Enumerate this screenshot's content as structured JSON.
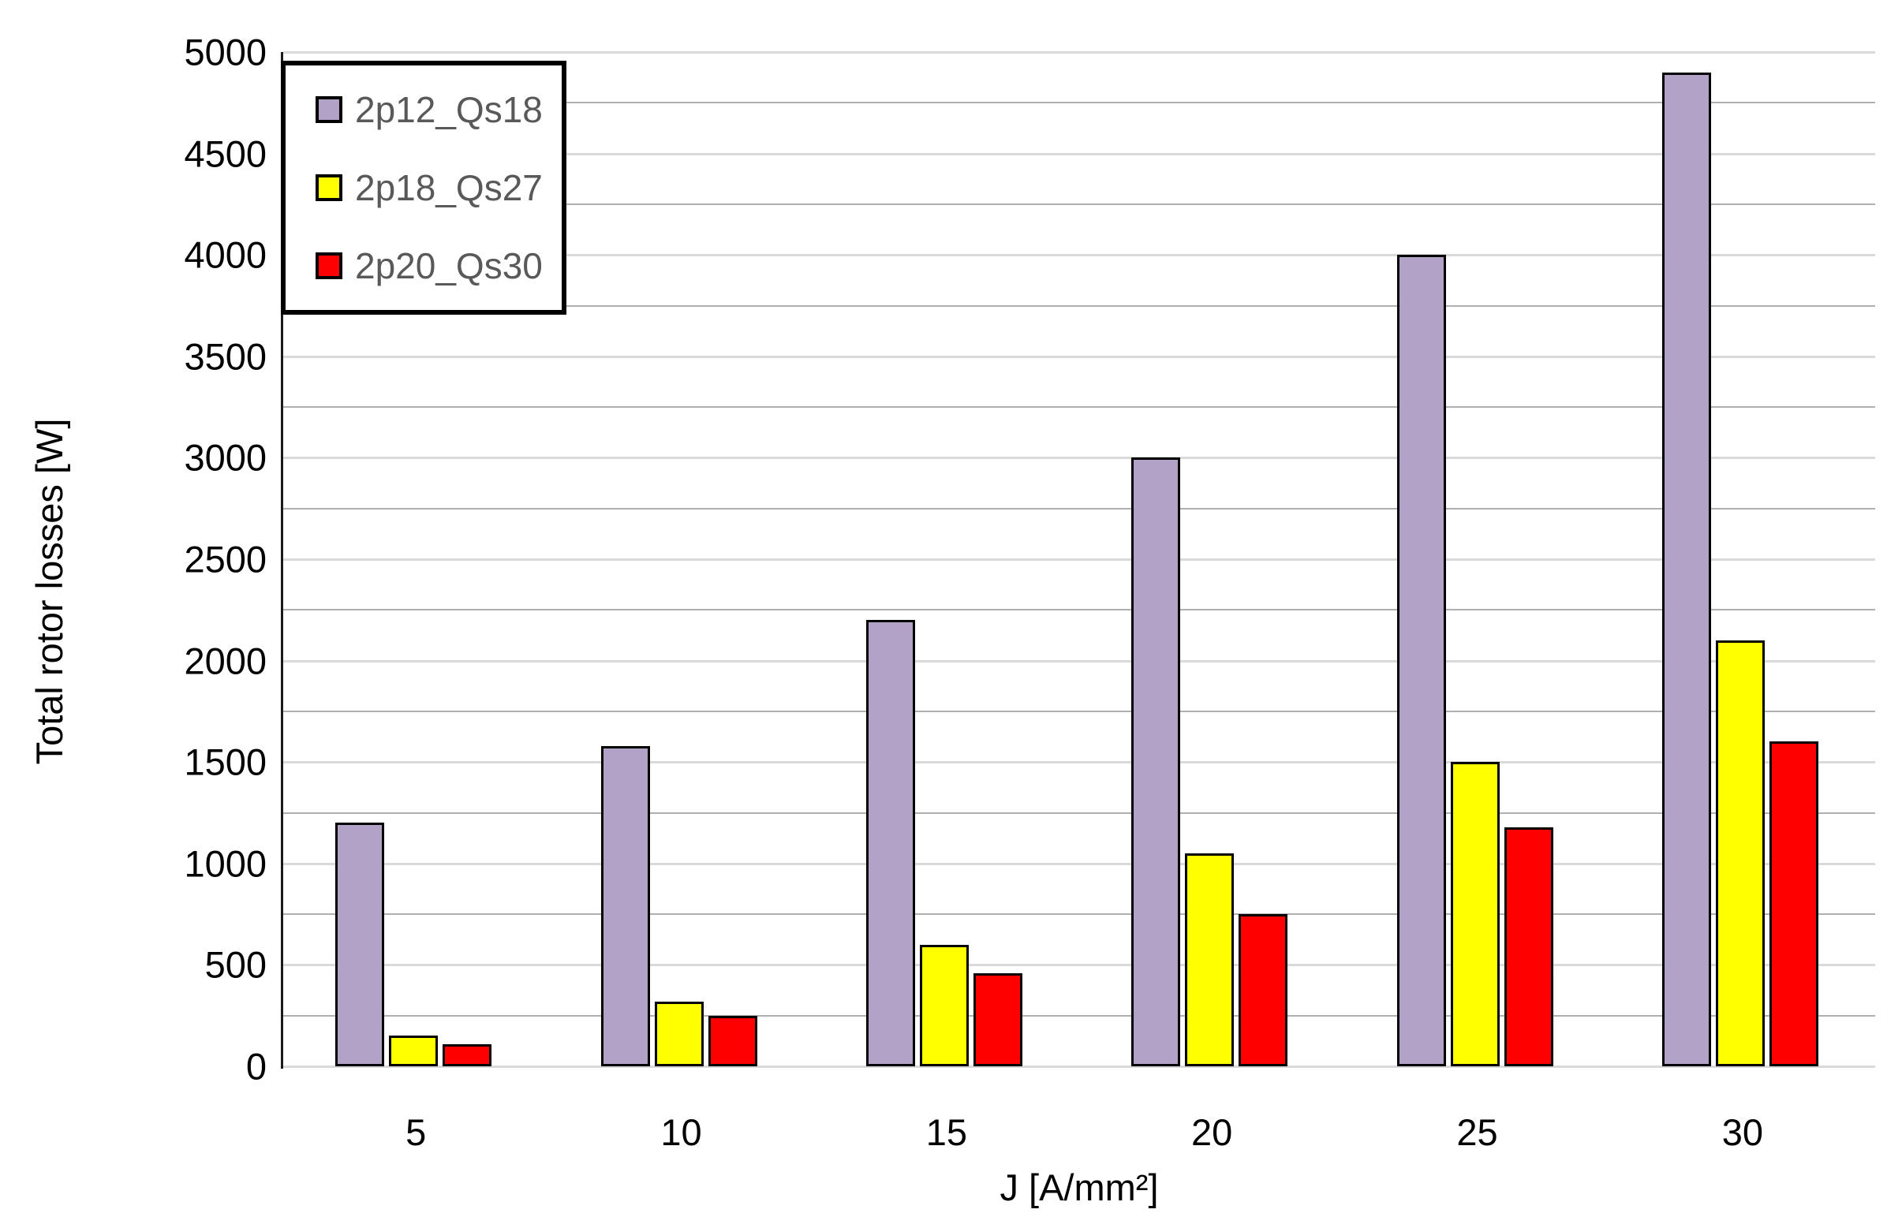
{
  "chart_data": {
    "type": "bar",
    "title": "",
    "xlabel": "J [A/mm²]",
    "ylabel": "Total rotor losses  [W]",
    "categories": [
      "5",
      "10",
      "15",
      "20",
      "25",
      "30"
    ],
    "series": [
      {
        "name": "2p12_Qs18",
        "color": "#b2a2c7",
        "values": [
          1200,
          1580,
          2200,
          3000,
          4000,
          4900
        ]
      },
      {
        "name": "2p18_Qs27",
        "color": "#ffff00",
        "values": [
          150,
          320,
          600,
          1050,
          1500,
          2100
        ]
      },
      {
        "name": "2p20_Qs30",
        "color": "#ff0000",
        "values": [
          110,
          250,
          460,
          750,
          1180,
          1600
        ]
      }
    ],
    "ylim": [
      0,
      5000
    ],
    "ytick_step": 500,
    "gridline_step": 250,
    "ytick_labels": [
      "0",
      "500",
      "1000",
      "1500",
      "2000",
      "2500",
      "3000",
      "3500",
      "4000",
      "4500",
      "5000"
    ],
    "grid": true,
    "legend_position": "top-left",
    "bar_border_color": "#000000",
    "major_grid_color": "#d9d9d9",
    "minor_grid_color": "#b0b0b0",
    "axis_line_color": "#1a1a1a",
    "legend_text_color": "#595959"
  }
}
